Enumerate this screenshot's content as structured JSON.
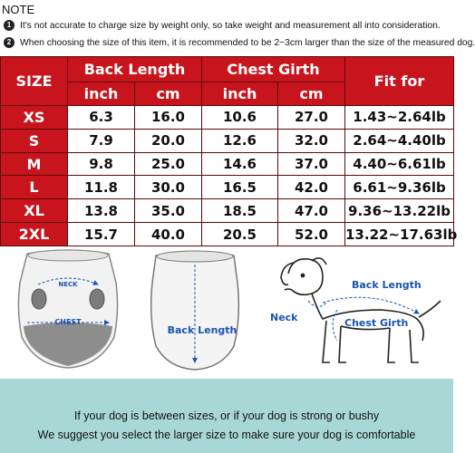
{
  "notes": {
    "title": "NOTE",
    "items": [
      {
        "num": "1",
        "text": "It's not accurate to charge size by weight only, so take weight and measurement all into consideration."
      },
      {
        "num": "2",
        "text": "When choosing the size of this item, it is recommended to be 2~3cm larger than the size of the measured dog."
      }
    ]
  },
  "table": {
    "size_header": "SIZE",
    "back_length_header": "Back Length",
    "chest_girth_header": "Chest Girth",
    "fit_for_header": "Fit for",
    "unit_inch": "inch",
    "unit_cm": "cm",
    "rows": [
      {
        "size": "XS",
        "back_inch": "6.3",
        "back_cm": "16.0",
        "chest_inch": "10.6",
        "chest_cm": "27.0",
        "fit": "1.43~2.64lb"
      },
      {
        "size": "S",
        "back_inch": "7.9",
        "back_cm": "20.0",
        "chest_inch": "12.6",
        "chest_cm": "32.0",
        "fit": "2.64~4.40lb"
      },
      {
        "size": "M",
        "back_inch": "9.8",
        "back_cm": "25.0",
        "chest_inch": "14.6",
        "chest_cm": "37.0",
        "fit": "4.40~6.61lb"
      },
      {
        "size": "L",
        "back_inch": "11.8",
        "back_cm": "30.0",
        "chest_inch": "16.5",
        "chest_cm": "42.0",
        "fit": "6.61~9.36lb"
      },
      {
        "size": "XL",
        "back_inch": "13.8",
        "back_cm": "35.0",
        "chest_inch": "18.5",
        "chest_cm": "47.0",
        "fit": "9.36~13.22lb"
      },
      {
        "size": "2XL",
        "back_inch": "15.7",
        "back_cm": "40.0",
        "chest_inch": "20.5",
        "chest_cm": "52.0",
        "fit": "13.22~17.63lb"
      }
    ]
  },
  "illustrations": {
    "neck_small": "NECK",
    "chest_small": "CHEST",
    "back_length": "Back Length",
    "dog_back_length": "Back Length",
    "dog_neck": "Neck",
    "dog_chest_girth": "Chest Girth"
  },
  "footer": {
    "line1": "If your dog is between sizes, or if your dog is strong or bushy",
    "line2": "We suggest you select the larger size to make sure  your dog is comfortable"
  },
  "colors": {
    "header_red": "#c8151d",
    "label_blue": "#1a55b0",
    "footer_teal": "#a8d8d6"
  }
}
